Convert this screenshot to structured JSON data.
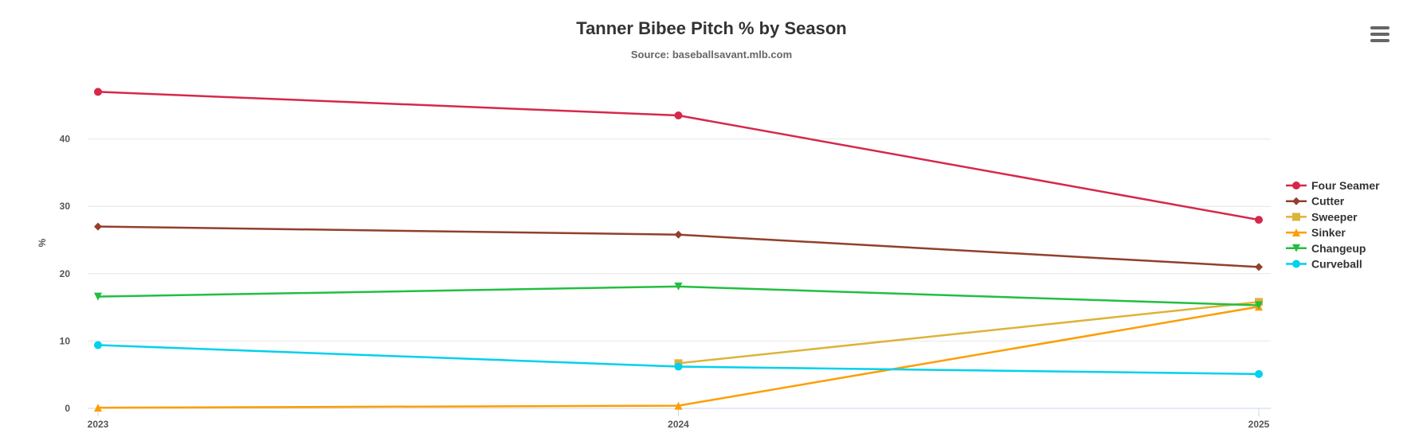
{
  "chart_data": {
    "type": "line",
    "title": "Tanner Bibee Pitch % by Season",
    "subtitle": "Source: baseballsavant.mlb.com",
    "xlabel": "",
    "ylabel": "%",
    "categories": [
      "2023",
      "2024",
      "2025"
    ],
    "yticks": [
      0,
      10,
      20,
      30,
      40
    ],
    "ylim": [
      0,
      50
    ],
    "grid": true,
    "legend": "right",
    "series": [
      {
        "name": "Four Seamer",
        "color": "#d6284b",
        "marker": "circle",
        "values": [
          47.0,
          43.5,
          28.0
        ]
      },
      {
        "name": "Cutter",
        "color": "#933f2c",
        "marker": "diamond",
        "values": [
          27.0,
          25.8,
          21.0
        ]
      },
      {
        "name": "Sweeper",
        "color": "#ddb33a",
        "marker": "square",
        "values": [
          null,
          6.7,
          15.8
        ]
      },
      {
        "name": "Sinker",
        "color": "#fe9d00",
        "marker": "triangle",
        "values": [
          0.1,
          0.4,
          15.1
        ]
      },
      {
        "name": "Changeup",
        "color": "#23be41",
        "marker": "triangle-down",
        "values": [
          16.6,
          18.1,
          15.3
        ]
      },
      {
        "name": "Curveball",
        "color": "#00d1ed",
        "marker": "circle",
        "values": [
          9.4,
          6.2,
          5.1
        ]
      }
    ]
  },
  "menu": {
    "icon": "hamburger-menu-icon"
  }
}
